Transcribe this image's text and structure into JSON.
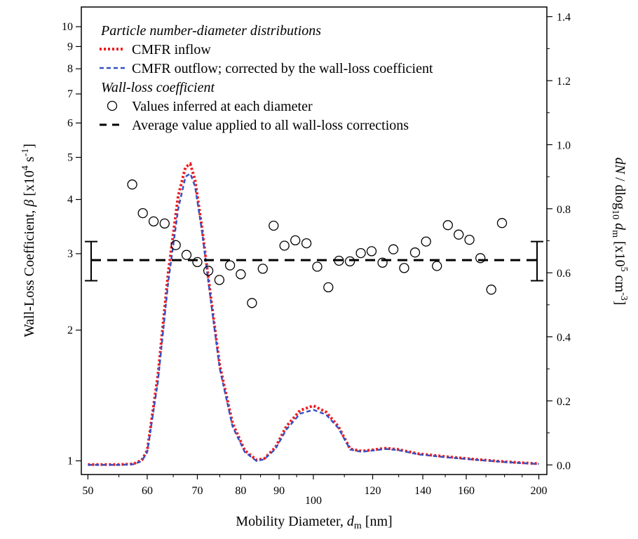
{
  "chart_data": {
    "type": "line",
    "x_label": "Mobility Diameter, d_m [nm]",
    "x_label_parts": [
      "Mobility Diameter, ",
      "d",
      "m",
      " [nm]"
    ],
    "y_label_left": "Wall-Loss Coefficient, β [x10^4 s^-1]",
    "y_label_left_parts": [
      "Wall-Loss Coefficient, ",
      "β",
      " [x10",
      "4",
      " s",
      "-1",
      "]"
    ],
    "y_label_right": "dN / dlog10 dm [x10^5 cm^-3]",
    "y_label_right_parts": [
      "dN",
      " / dlog",
      "10",
      " d",
      "m",
      " [x10",
      "5",
      " cm",
      "-3",
      "]"
    ],
    "x_scale": "log",
    "x_range": [
      49,
      205
    ],
    "x_ticks": [
      50,
      60,
      70,
      80,
      90,
      100,
      120,
      140,
      160,
      200
    ],
    "x_tick_labels": [
      "50",
      "60",
      "70",
      "80",
      "90",
      "100",
      "120",
      "140",
      "160",
      "200"
    ],
    "left_axis": {
      "scale": "log",
      "range": [
        0.93,
        11.1
      ],
      "ticks": [
        1,
        2,
        3,
        4,
        5,
        6,
        7,
        8,
        9,
        10
      ],
      "tick_labels": [
        "1",
        "2",
        "3",
        "4",
        "5",
        "6",
        "7",
        "8",
        "9",
        "10"
      ]
    },
    "right_axis": {
      "scale": "linear",
      "range": [
        -0.03,
        1.43
      ],
      "ticks": [
        0,
        0.2,
        0.4,
        0.6,
        0.8,
        1.0,
        1.2,
        1.4
      ],
      "tick_labels": [
        "0.0",
        "0.2",
        "0.4",
        "0.6",
        "0.8",
        "1.0",
        "1.2",
        "1.4"
      ]
    },
    "legend": {
      "position": "top-left",
      "entries": [
        {
          "kind": "heading",
          "text": "Particle number-diameter distributions"
        },
        {
          "kind": "line",
          "style": "red-dotted",
          "text": "CMFR inflow"
        },
        {
          "kind": "line",
          "style": "blue-dashed",
          "text": "CMFR outflow; corrected by the wall-loss coefficient"
        },
        {
          "kind": "heading",
          "text": "Wall-loss coefficient"
        },
        {
          "kind": "marker",
          "style": "open-circle",
          "text": "Values inferred at each diameter"
        },
        {
          "kind": "line",
          "style": "black-dashed",
          "text": "Average value applied to all wall-loss corrections"
        }
      ]
    },
    "series": [
      {
        "name": "CMFR inflow",
        "axis": "right",
        "color": "#ee1c1c",
        "style": "dotted",
        "points": [
          [
            50,
            0.001
          ],
          [
            55,
            0.001
          ],
          [
            57.5,
            0.003
          ],
          [
            59,
            0.015
          ],
          [
            60,
            0.045
          ],
          [
            62,
            0.28
          ],
          [
            64,
            0.6
          ],
          [
            66,
            0.84
          ],
          [
            67.5,
            0.93
          ],
          [
            68.5,
            0.94
          ],
          [
            69.5,
            0.89
          ],
          [
            71,
            0.74
          ],
          [
            73,
            0.52
          ],
          [
            75,
            0.31
          ],
          [
            78,
            0.13
          ],
          [
            81,
            0.045
          ],
          [
            84,
            0.015
          ],
          [
            86,
            0.02
          ],
          [
            89,
            0.055
          ],
          [
            92,
            0.12
          ],
          [
            96,
            0.17
          ],
          [
            100,
            0.185
          ],
          [
            104,
            0.165
          ],
          [
            108,
            0.12
          ],
          [
            112,
            0.05
          ],
          [
            116,
            0.043
          ],
          [
            120,
            0.047
          ],
          [
            125,
            0.052
          ],
          [
            130,
            0.048
          ],
          [
            138,
            0.035
          ],
          [
            150,
            0.026
          ],
          [
            165,
            0.017
          ],
          [
            180,
            0.01
          ],
          [
            195,
            0.005
          ],
          [
            200,
            0.004
          ]
        ]
      },
      {
        "name": "CMFR outflow; corrected by the wall-loss coefficient",
        "axis": "right",
        "color": "#3650c4",
        "style": "dashed",
        "points": [
          [
            50,
            0.0
          ],
          [
            55,
            0.0
          ],
          [
            57.5,
            0.002
          ],
          [
            59,
            0.012
          ],
          [
            60,
            0.04
          ],
          [
            62,
            0.26
          ],
          [
            64,
            0.57
          ],
          [
            66,
            0.8
          ],
          [
            67.5,
            0.9
          ],
          [
            68.5,
            0.91
          ],
          [
            69.5,
            0.87
          ],
          [
            71,
            0.73
          ],
          [
            73,
            0.51
          ],
          [
            75,
            0.3
          ],
          [
            78,
            0.12
          ],
          [
            81,
            0.04
          ],
          [
            84,
            0.012
          ],
          [
            86,
            0.018
          ],
          [
            89,
            0.05
          ],
          [
            92,
            0.11
          ],
          [
            96,
            0.16
          ],
          [
            100,
            0.172
          ],
          [
            104,
            0.157
          ],
          [
            108,
            0.115
          ],
          [
            112,
            0.048
          ],
          [
            116,
            0.041
          ],
          [
            120,
            0.045
          ],
          [
            125,
            0.05
          ],
          [
            130,
            0.046
          ],
          [
            138,
            0.033
          ],
          [
            150,
            0.024
          ],
          [
            165,
            0.016
          ],
          [
            180,
            0.009
          ],
          [
            195,
            0.004
          ],
          [
            200,
            0.003
          ]
        ]
      }
    ],
    "scatter": {
      "name": "Values inferred at each diameter",
      "axis": "left",
      "points": [
        [
          57.3,
          4.33
        ],
        [
          59.2,
          3.72
        ],
        [
          61.2,
          3.56
        ],
        [
          63.3,
          3.52
        ],
        [
          65.5,
          3.14
        ],
        [
          67.7,
          2.98
        ],
        [
          70.0,
          2.87
        ],
        [
          72.4,
          2.74
        ],
        [
          74.9,
          2.61
        ],
        [
          77.4,
          2.82
        ],
        [
          80.0,
          2.69
        ],
        [
          82.8,
          2.31
        ],
        [
          85.6,
          2.77
        ],
        [
          88.5,
          3.48
        ],
        [
          91.5,
          3.13
        ],
        [
          94.6,
          3.22
        ],
        [
          97.9,
          3.17
        ],
        [
          101.2,
          2.8
        ],
        [
          104.7,
          2.51
        ],
        [
          108.2,
          2.89
        ],
        [
          111.9,
          2.88
        ],
        [
          115.7,
          3.01
        ],
        [
          119.6,
          3.04
        ],
        [
          123.7,
          2.86
        ],
        [
          127.9,
          3.07
        ],
        [
          132.2,
          2.78
        ],
        [
          136.7,
          3.02
        ],
        [
          141.4,
          3.2
        ],
        [
          146.2,
          2.81
        ],
        [
          151.2,
          3.49
        ],
        [
          156.3,
          3.32
        ],
        [
          161.6,
          3.23
        ],
        [
          167.1,
          2.93
        ],
        [
          172.8,
          2.48
        ],
        [
          178.6,
          3.53
        ]
      ]
    },
    "average": {
      "name": "Average value applied to all wall-loss corrections",
      "axis": "left",
      "value": 2.9,
      "error_low": 2.6,
      "error_high": 3.2
    }
  }
}
